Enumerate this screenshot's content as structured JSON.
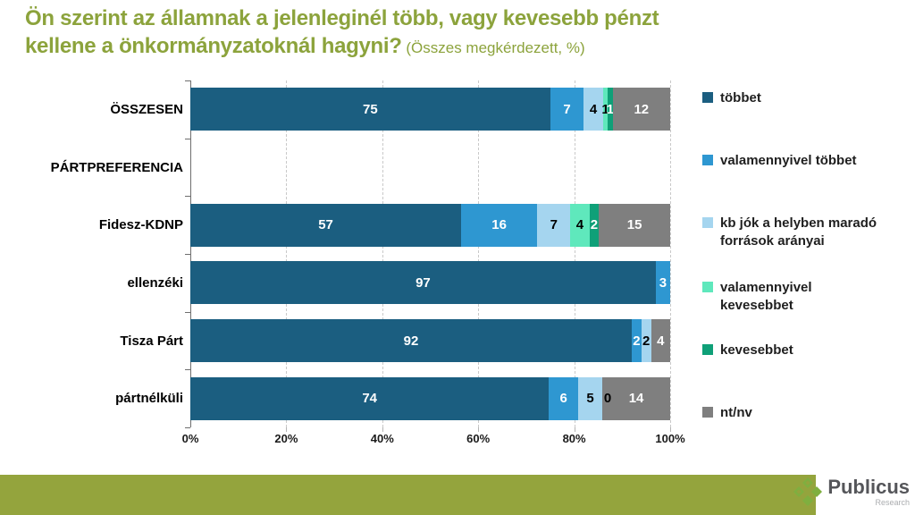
{
  "title": {
    "line1": "Ön szerint az államnak a jelenleginél több, vagy kevesebb pénzt",
    "line2": "kellene a önkormányzatoknál hagyni?",
    "suffix": " (Összes megkérdezett, %)"
  },
  "colors": {
    "title_green": "#8CA33C",
    "footer_bar_green": "#94A43D",
    "logo_green": "#7FAF3F",
    "axis": "#6e6e6e",
    "gridline": "#C9C9C9"
  },
  "chart_data": {
    "type": "bar",
    "orientation": "horizontal",
    "stacked": true,
    "unit": "%",
    "title": "Ön szerint az államnak a jelenleginél több, vagy kevesebb pénzt kellene a önkormányzatoknál hagyni? (Összes megkérdezett, %)",
    "categories": [
      "ÖSSZESEN",
      "PÁRTPREFERENCIA",
      "Fidesz-KDNP",
      "ellenzéki",
      "Tisza Párt",
      "pártnélküli"
    ],
    "series": [
      {
        "name": "többet",
        "color": "#1B5E80",
        "label_color": "#FFFFFF",
        "legend_lines": [
          "többet"
        ],
        "values": [
          75,
          null,
          57,
          97,
          92,
          74
        ]
      },
      {
        "name": "valamennyivel többet",
        "color": "#2E97D1",
        "label_color": "#FFFFFF",
        "legend_lines": [
          "valamennyivel többet"
        ],
        "values": [
          7,
          null,
          16,
          3,
          2,
          6
        ]
      },
      {
        "name": "kb jók a helyben maradó források arányai",
        "color": "#A5D5EF",
        "label_color": "#000000",
        "legend_lines": [
          "kb jók a helyben maradó",
          "források arányai"
        ],
        "values": [
          4,
          null,
          7,
          null,
          2,
          5
        ]
      },
      {
        "name": "valamennyivel kevesebbet",
        "color": "#5FE8BC",
        "label_color": "#000000",
        "legend_lines": [
          "valamennyivel",
          "kevesebbet"
        ],
        "values": [
          1,
          null,
          4,
          null,
          null,
          0
        ]
      },
      {
        "name": "kevesebbet",
        "color": "#0FA078",
        "label_color": "#FFFFFF",
        "legend_lines": [
          "kevesebbet"
        ],
        "values": [
          1,
          null,
          2,
          null,
          null,
          null
        ]
      },
      {
        "name": "nt/nv",
        "color": "#7F7F7F",
        "label_color": "#FFFFFF",
        "legend_lines": [
          "nt/nv"
        ],
        "values": [
          12,
          null,
          15,
          null,
          4,
          14
        ]
      }
    ],
    "x_ticks": [
      "0%",
      "20%",
      "40%",
      "60%",
      "80%",
      "100%"
    ],
    "xlim": [
      0,
      100
    ],
    "grid": "vertical-dashed",
    "legend_position": "right"
  },
  "footer": {
    "brand": "Publicus",
    "brand_sub": "Research"
  }
}
